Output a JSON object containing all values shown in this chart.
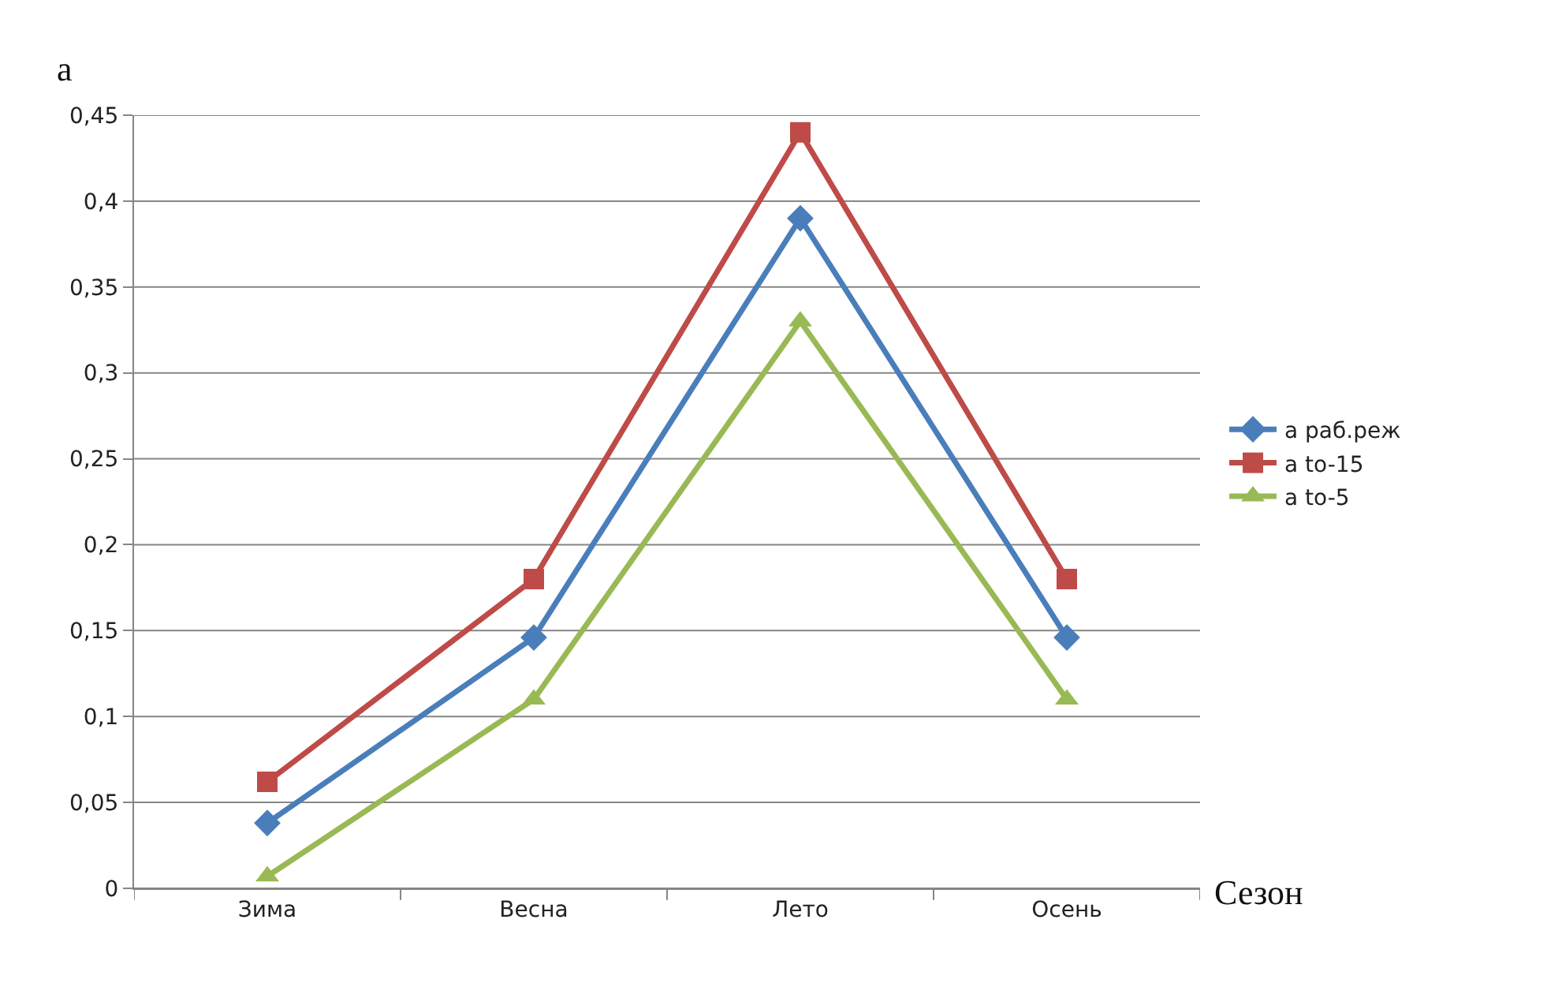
{
  "chart_data": {
    "type": "line",
    "ylabel": "а",
    "xlabel": "Сезон",
    "categories": [
      "Зима",
      "Весна",
      "Лето",
      "Осень"
    ],
    "series": [
      {
        "name": "а раб.реж",
        "color": "#4a7ebb",
        "marker": "diamond",
        "values": [
          0.038,
          0.146,
          0.39,
          0.146
        ]
      },
      {
        "name": "а to-15",
        "color": "#be4b48",
        "marker": "square",
        "values": [
          0.062,
          0.18,
          0.44,
          0.18
        ]
      },
      {
        "name": "а to-5",
        "color": "#98b954",
        "marker": "triangle",
        "values": [
          0.007,
          0.11,
          0.33,
          0.11
        ]
      }
    ],
    "ylim": [
      0,
      0.45
    ],
    "yticks": [
      0,
      {
        "value": 0.05,
        "label": "0,05"
      },
      {
        "value": 0.1,
        "label": "0,1"
      },
      {
        "value": 0.15,
        "label": "0,15"
      },
      {
        "value": 0.2,
        "label": "0,2"
      },
      {
        "value": 0.25,
        "label": "0,25"
      },
      {
        "value": 0.3,
        "label": "0,3"
      },
      {
        "value": 0.35,
        "label": "0,35"
      },
      {
        "value": 0.4,
        "label": "0,4"
      },
      {
        "value": 0.45,
        "label": "0,45"
      }
    ],
    "grid": "y",
    "legend": "right",
    "line_style": "solid"
  }
}
